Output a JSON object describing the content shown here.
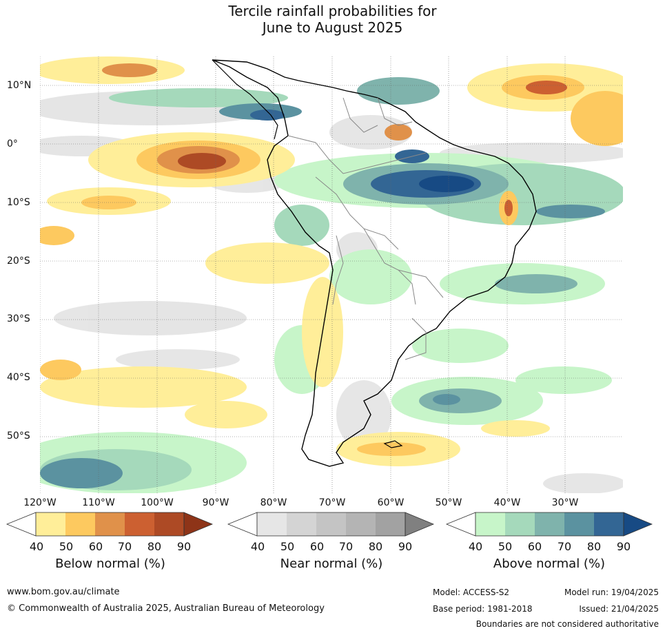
{
  "title_line1": "Tercile rainfall probabilities for",
  "title_line2": "June to August 2025",
  "lat_labels": [
    "10°N",
    "0°",
    "10°S",
    "20°S",
    "30°S",
    "40°S",
    "50°S"
  ],
  "lon_labels": [
    "120°W",
    "110°W",
    "100°W",
    "90°W",
    "80°W",
    "70°W",
    "60°W",
    "50°W",
    "40°W",
    "30°W"
  ],
  "legends": [
    {
      "title": "Below normal (%)",
      "ticks": [
        "40",
        "50",
        "60",
        "70",
        "80",
        "90"
      ],
      "colors": [
        "#ffee99",
        "#fdc95f",
        "#e0914a",
        "#cc6031",
        "#ad4a25",
        "#8e3418"
      ]
    },
    {
      "title": "Near normal (%)",
      "ticks": [
        "40",
        "50",
        "60",
        "70",
        "80",
        "90"
      ],
      "colors": [
        "#e6e6e6",
        "#d4d4d4",
        "#c4c4c4",
        "#b4b4b4",
        "#a2a2a2",
        "#808080"
      ]
    },
    {
      "title": "Above normal (%)",
      "ticks": [
        "40",
        "50",
        "60",
        "70",
        "80",
        "90"
      ],
      "colors": [
        "#c7f5c9",
        "#a5d9bb",
        "#7fb3ac",
        "#5b92a0",
        "#336694",
        "#174a84"
      ]
    }
  ],
  "footer": {
    "url": "www.bom.gov.au/climate",
    "copyright": "© Commonwealth of Australia 2025, Australian Bureau of Meteorology",
    "model": "Model: ACCESS-S2",
    "base_period": "Base period: 1981-2018",
    "model_run": "Model run: 19/04/2025",
    "issued": "Issued: 21/04/2025",
    "disclaimer": "Boundaries are not considered authoritative"
  }
}
